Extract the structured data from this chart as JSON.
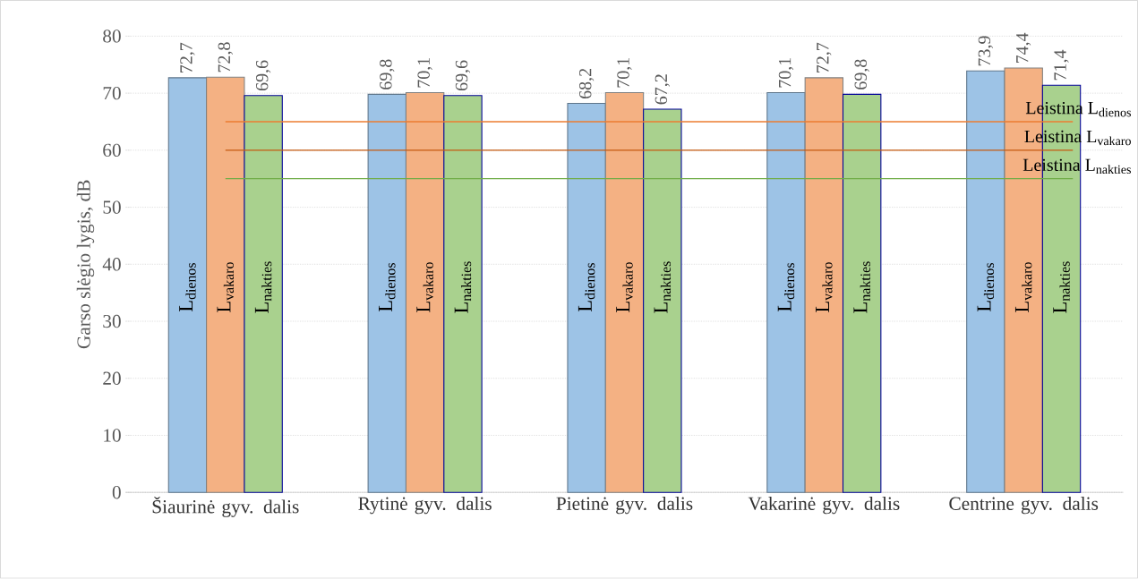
{
  "chart_data": {
    "type": "bar",
    "ylabel": "Garso slėgio lygis,  dB",
    "categories": [
      "Šiaurinė gyv. dalis",
      "Rytinė gyv. dalis",
      "Pietinė gyv. dalis",
      "Vakarinė gyv. dalis",
      "Centrine gyv. dalis"
    ],
    "series": [
      {
        "name": "L$_{dienos}$",
        "color": "#9dc3e6",
        "values": [
          72.7,
          69.8,
          68.2,
          70.1,
          73.9
        ],
        "value_labels": [
          "72,7",
          "69,8",
          "68,2",
          "70,1",
          "73,9"
        ]
      },
      {
        "name": "L$_{vakaro}$",
        "color": "#f4b183",
        "values": [
          72.8,
          70.1,
          70.1,
          72.7,
          74.4
        ],
        "value_labels": [
          "72,8",
          "70,1",
          "70,1",
          "72,7",
          "74,4"
        ]
      },
      {
        "name": "L$_{nakties}$",
        "color": "#a9d18e",
        "values": [
          69.6,
          69.6,
          67.2,
          69.8,
          71.4
        ],
        "value_labels": [
          "69,6",
          "69,6",
          "67,2",
          "69,8",
          "71,4"
        ]
      }
    ],
    "ylim": [
      0,
      80
    ],
    "yticks": [
      0,
      10,
      20,
      30,
      40,
      50,
      60,
      70,
      80
    ],
    "grid": "y",
    "ref_lines": [
      {
        "axis": "y",
        "value": 65,
        "label": "Leistina L$_{dienos}$",
        "color": "#ed7d31"
      },
      {
        "axis": "y",
        "value": 60,
        "label": "Leistina L$_{vakaro}$",
        "color": "#c55a11"
      },
      {
        "axis": "y",
        "value": 55,
        "label": "Leistina L$_{nakties}$",
        "color": "#70ad47"
      }
    ]
  }
}
